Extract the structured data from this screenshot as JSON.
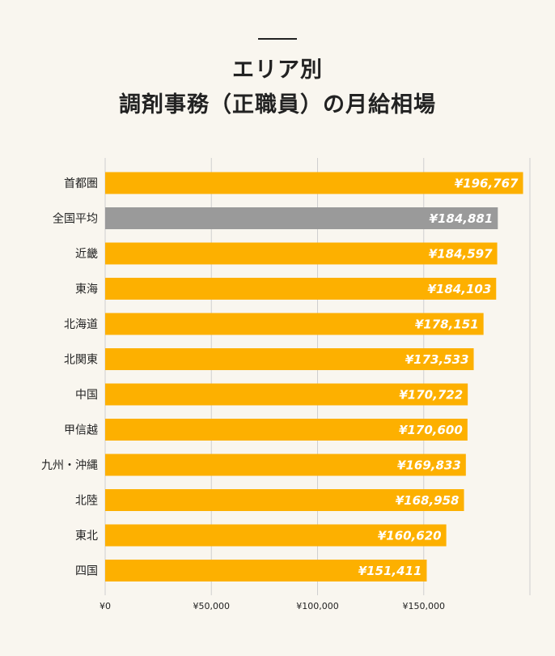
{
  "title_line1": "エリア別",
  "title_line2": "調剤事務（正職員）の月給相場",
  "colors": {
    "bar": "#fdb000",
    "highlight": "#9a9a9a",
    "grid": "#cfcfcf",
    "background": "#f9f6ef"
  },
  "chart_data": {
    "type": "bar",
    "orientation": "horizontal",
    "categories": [
      "首都圏",
      "全国平均",
      "近畿",
      "東海",
      "北海道",
      "北関東",
      "中国",
      "甲信越",
      "九州・沖縄",
      "北陸",
      "東北",
      "四国"
    ],
    "values": [
      196767,
      184881,
      184597,
      184103,
      178151,
      173533,
      170722,
      170600,
      169833,
      168958,
      160620,
      151411
    ],
    "value_labels": [
      "¥196,767",
      "¥184,881",
      "¥184,597",
      "¥184,103",
      "¥178,151",
      "¥173,533",
      "¥170,722",
      "¥170,600",
      "¥169,833",
      "¥168,958",
      "¥160,620",
      "¥151,411"
    ],
    "highlight_category": "全国平均",
    "xlim": [
      0,
      200000
    ],
    "xticks": [
      0,
      50000,
      100000,
      150000
    ],
    "xtick_labels": [
      "¥0",
      "¥50,000",
      "¥100,000",
      "¥150,000"
    ],
    "grid": true,
    "legend": "none"
  }
}
